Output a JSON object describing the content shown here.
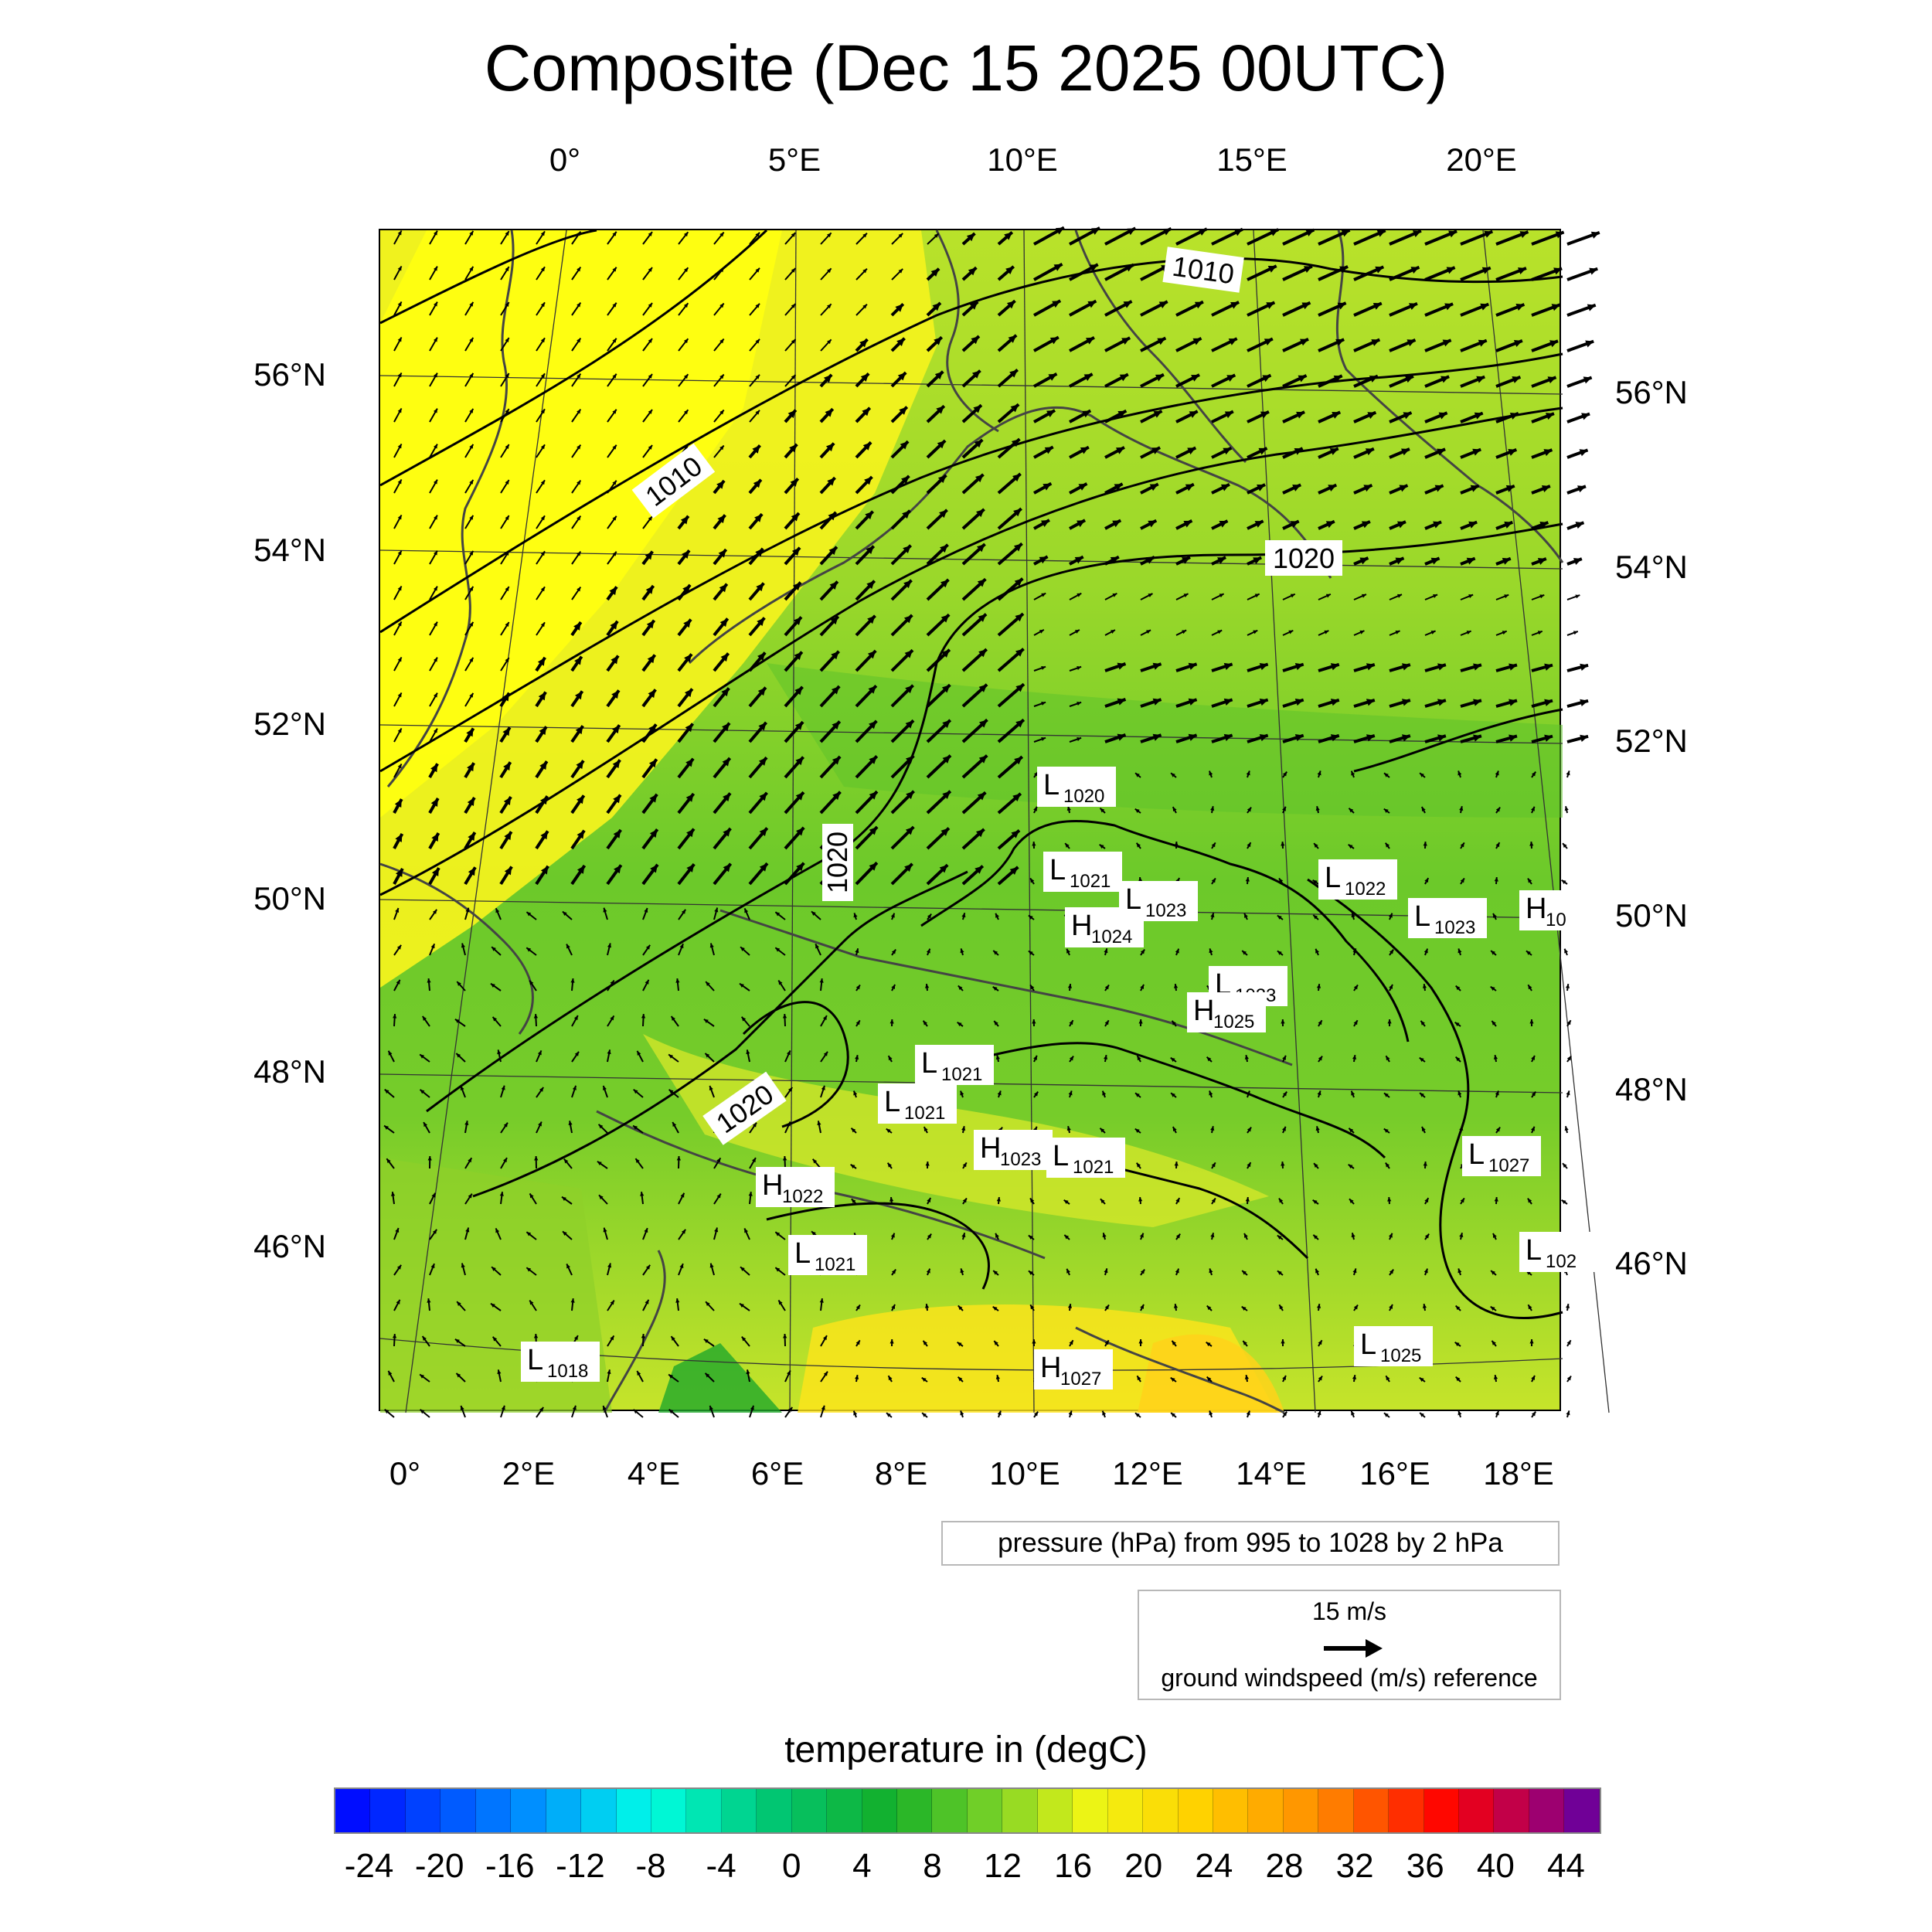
{
  "title": "Composite (Dec 15 2025 00UTC)",
  "top_lon_labels": [
    "0°",
    "5°E",
    "10°E",
    "15°E",
    "20°E"
  ],
  "bottom_lon_labels": [
    "0°",
    "2°E",
    "4°E",
    "6°E",
    "8°E",
    "10°E",
    "12°E",
    "14°E",
    "16°E",
    "18°E"
  ],
  "left_lat_labels": [
    "56°N",
    "54°N",
    "52°N",
    "50°N",
    "48°N",
    "46°N"
  ],
  "right_lat_labels": [
    "56°N",
    "54°N",
    "52°N",
    "50°N",
    "48°N",
    "46°N"
  ],
  "isobar_labels": [
    "1010",
    "1010",
    "1020",
    "1020",
    "1020"
  ],
  "pressure_centers": [
    {
      "type": "L",
      "value": "1020"
    },
    {
      "type": "L",
      "value": "1021"
    },
    {
      "type": "H",
      "value": "1024"
    },
    {
      "type": "L",
      "value": "1023"
    },
    {
      "type": "L",
      "value": "1022"
    },
    {
      "type": "L",
      "value": "1023"
    },
    {
      "type": "L",
      "value": "1023"
    },
    {
      "type": "H",
      "value": "1025"
    },
    {
      "type": "L",
      "value": "1021"
    },
    {
      "type": "L",
      "value": "1021"
    },
    {
      "type": "H",
      "value": "1023"
    },
    {
      "type": "L",
      "value": "1021"
    },
    {
      "type": "H",
      "value": "1022"
    },
    {
      "type": "L",
      "value": "1021"
    },
    {
      "type": "L",
      "value": "1027"
    },
    {
      "type": "L",
      "value": "1025"
    },
    {
      "type": "H",
      "value": "1027"
    },
    {
      "type": "L",
      "value": "1018"
    },
    {
      "type": "H",
      "value": "10"
    },
    {
      "type": "L",
      "value": "102"
    }
  ],
  "contour_info": "pressure (hPa) from 995 to 1028 by 2 hPa",
  "wind_reference": {
    "speed": "15 m/s",
    "caption": "ground windspeed (m/s) reference"
  },
  "colorbar": {
    "title": "temperature in (degC)",
    "tick_labels": [
      "-24",
      "-20",
      "-16",
      "-12",
      "-8",
      "-4",
      "0",
      "4",
      "8",
      "12",
      "16",
      "20",
      "24",
      "28",
      "32",
      "36",
      "40",
      "44"
    ],
    "min": -26,
    "max": 46,
    "step": 2
  },
  "colors": {
    "cold": "#0000ff",
    "neutral_green": "#2fb52a",
    "warm_yellow": "#ffff00",
    "hot": "#ff0000",
    "extreme": "#5b0aa8"
  }
}
